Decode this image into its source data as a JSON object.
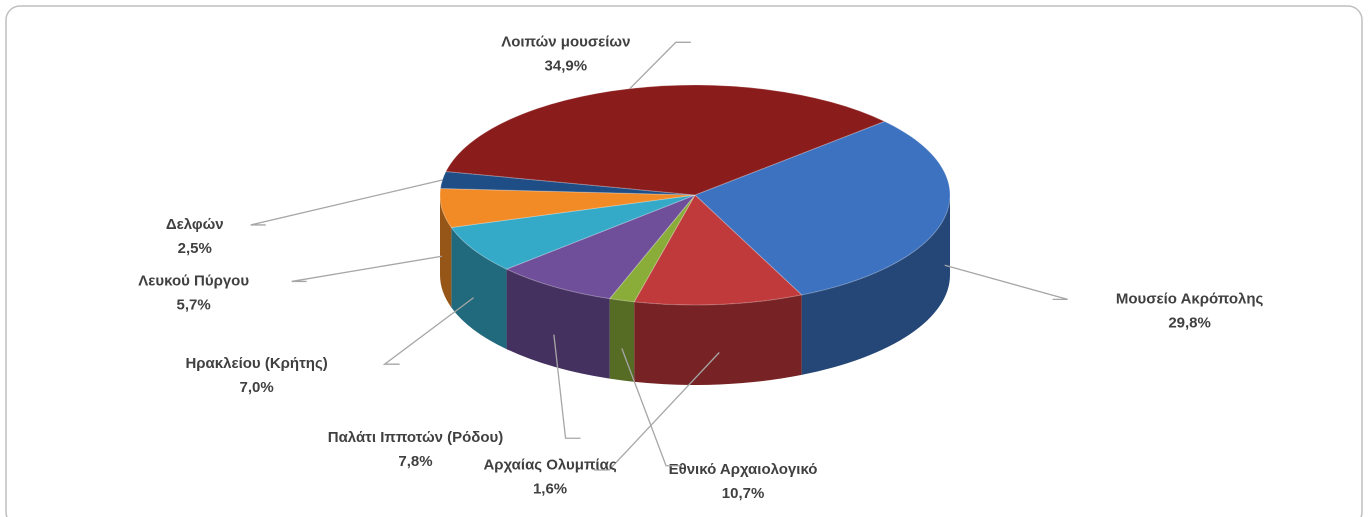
{
  "chart_data": {
    "type": "pie",
    "categories": [
      "Μουσείο Ακρόπολης",
      "Εθνικό Αρχαιολογικό",
      "Αρχαίας Ολυμπίας",
      "Παλάτι Ιπποτών (Ρόδου)",
      "Ηρακλείου (Κρήτης)",
      "Λευκού Πύργου",
      "Δελφών",
      "Λοιπών μουσείων"
    ],
    "values": [
      29.8,
      10.7,
      1.6,
      7.8,
      7.0,
      5.7,
      2.5,
      34.9
    ],
    "value_labels": [
      "29,8%",
      "10,7%",
      "1,6%",
      "7,8%",
      "7,0%",
      "5,7%",
      "2,5%",
      "34,9%"
    ],
    "colors": [
      "#3c72c0",
      "#c0393b",
      "#8aad3a",
      "#6f4f9a",
      "#35a9c8",
      "#f28a25",
      "#1f4e87",
      "#8b1c1c"
    ]
  }
}
